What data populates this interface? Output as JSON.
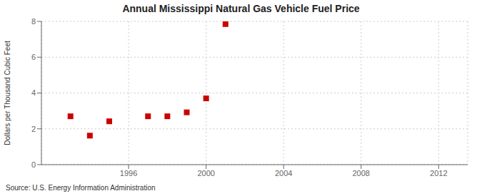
{
  "chart_data": {
    "type": "scatter",
    "title": "Annual Mississippi Natural Gas Vehicle Fuel Price",
    "ylabel": "Dollars per Thousand Cubic Feet",
    "annotations": [
      "Source: U.S. Energy Information Administration"
    ],
    "x": [
      1993,
      1994,
      1995,
      1997,
      1998,
      1999,
      2000,
      2001
    ],
    "values": [
      2.7,
      1.62,
      2.42,
      2.7,
      2.7,
      2.92,
      3.7,
      7.85
    ],
    "color": "#cc0000",
    "marker": "square",
    "xlim": [
      1991.5,
      2013.5
    ],
    "ylim": [
      0,
      8
    ],
    "xticks": [
      1996,
      2000,
      2004,
      2008,
      2012
    ],
    "yticks": [
      0,
      2,
      4,
      6,
      8
    ],
    "grid": true
  }
}
